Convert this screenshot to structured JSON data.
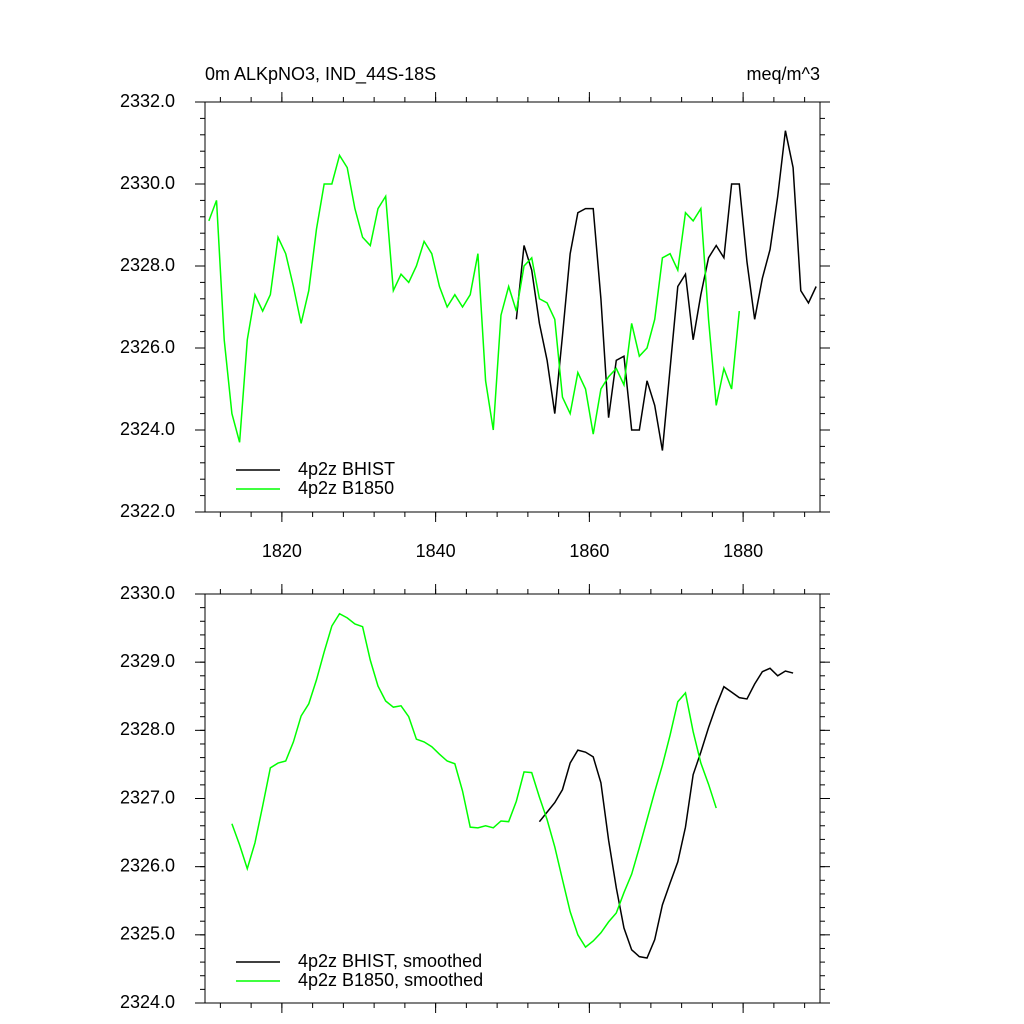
{
  "chart_data": [
    {
      "type": "line",
      "title": "0m ALKpNO3, IND_44S-18S",
      "units": "meq/m^3",
      "xlim": [
        1810,
        1890
      ],
      "xticks": [
        1820,
        1840,
        1860,
        1880
      ],
      "ylim": [
        2322,
        2332
      ],
      "yticks": [
        {
          "value": 2322,
          "label": "2322.0"
        },
        {
          "value": 2324,
          "label": "2324.0"
        },
        {
          "value": 2326,
          "label": "2326.0"
        },
        {
          "value": 2328,
          "label": "2328.0"
        },
        {
          "value": 2330,
          "label": "2330.0"
        },
        {
          "value": 2332,
          "label": "2332.0"
        }
      ],
      "series": [
        {
          "name": "4p2z BHIST",
          "color": "#000000",
          "x": [
            1850.5,
            1851.5,
            1852.5,
            1853.5,
            1854.5,
            1855.5,
            1856.5,
            1857.5,
            1858.5,
            1859.5,
            1860.5,
            1861.5,
            1862.5,
            1863.5,
            1864.5,
            1865.5,
            1866.5,
            1867.5,
            1868.5,
            1869.5,
            1870.5,
            1871.5,
            1872.5,
            1873.5,
            1874.5,
            1875.5,
            1876.5,
            1877.5,
            1878.5,
            1879.5,
            1880.5,
            1881.5,
            1882.5,
            1883.5,
            1884.5,
            1885.5,
            1886.5,
            1887.5,
            1888.5,
            1889.5
          ],
          "values": [
            2326.7,
            2328.5,
            2327.9,
            2326.6,
            2325.7,
            2324.4,
            2326.3,
            2328.3,
            2329.3,
            2329.4,
            2329.4,
            2327.2,
            2324.3,
            2325.7,
            2325.8,
            2324.0,
            2324.0,
            2325.2,
            2324.6,
            2323.5,
            2325.5,
            2327.5,
            2327.8,
            2326.2,
            2327.3,
            2328.2,
            2328.5,
            2328.2,
            2330.0,
            2330.0,
            2328.1,
            2326.7,
            2327.7,
            2328.4,
            2329.7,
            2331.3,
            2330.4,
            2327.4,
            2327.1,
            2327.5
          ]
        },
        {
          "name": "4p2z B1850",
          "color": "#00ff00",
          "x": [
            1810.5,
            1811.5,
            1812.5,
            1813.5,
            1814.5,
            1815.5,
            1816.5,
            1817.5,
            1818.5,
            1819.5,
            1820.5,
            1821.5,
            1822.5,
            1823.5,
            1824.5,
            1825.5,
            1826.5,
            1827.5,
            1828.5,
            1829.5,
            1830.5,
            1831.5,
            1832.5,
            1833.5,
            1834.5,
            1835.5,
            1836.5,
            1837.5,
            1838.5,
            1839.5,
            1840.5,
            1841.5,
            1842.5,
            1843.5,
            1844.5,
            1845.5,
            1846.5,
            1847.5,
            1848.5,
            1849.5,
            1850.5,
            1851.5,
            1852.5,
            1853.5,
            1854.5,
            1855.5,
            1856.5,
            1857.5,
            1858.5,
            1859.5,
            1860.5,
            1861.5,
            1862.5,
            1863.5,
            1864.5,
            1865.5,
            1866.5,
            1867.5,
            1868.5,
            1869.5,
            1870.5,
            1871.5,
            1872.5,
            1873.5,
            1874.5,
            1875.5,
            1876.5,
            1877.5,
            1878.5,
            1879.5
          ],
          "values": [
            2329.1,
            2329.6,
            2326.2,
            2324.4,
            2323.7,
            2326.2,
            2327.3,
            2326.9,
            2327.3,
            2328.7,
            2328.3,
            2327.5,
            2326.6,
            2327.4,
            2328.9,
            2330.0,
            2330.0,
            2330.7,
            2330.4,
            2329.4,
            2328.7,
            2328.5,
            2329.4,
            2329.7,
            2327.4,
            2327.8,
            2327.6,
            2328.0,
            2328.6,
            2328.3,
            2327.5,
            2327.0,
            2327.3,
            2327.0,
            2327.3,
            2328.3,
            2325.2,
            2324.0,
            2326.8,
            2327.5,
            2326.9,
            2328.0,
            2328.2,
            2327.2,
            2327.1,
            2326.7,
            2324.8,
            2324.4,
            2325.4,
            2325.0,
            2323.9,
            2325.0,
            2325.3,
            2325.5,
            2325.1,
            2326.6,
            2325.8,
            2326.0,
            2326.7,
            2328.2,
            2328.3,
            2327.9,
            2329.3,
            2329.1,
            2329.4,
            2326.7,
            2324.6,
            2325.5,
            2325.0,
            2326.9
          ]
        }
      ]
    },
    {
      "type": "line",
      "xlim": [
        1810,
        1890
      ],
      "xticks": [
        1820,
        1840,
        1860,
        1880
      ],
      "ylim": [
        2324,
        2330
      ],
      "yticks": [
        {
          "value": 2324,
          "label": "2324.0"
        },
        {
          "value": 2325,
          "label": "2325.0"
        },
        {
          "value": 2326,
          "label": "2326.0"
        },
        {
          "value": 2327,
          "label": "2327.0"
        },
        {
          "value": 2328,
          "label": "2328.0"
        },
        {
          "value": 2329,
          "label": "2329.0"
        },
        {
          "value": 2330,
          "label": "2330.0"
        }
      ],
      "series": [
        {
          "name": "4p2z BHIST, smoothed",
          "color": "#000000",
          "x": [
            1853.5,
            1854.5,
            1855.5,
            1856.5,
            1857.5,
            1858.5,
            1859.5,
            1860.5,
            1861.5,
            1862.5,
            1863.5,
            1864.5,
            1865.5,
            1866.5,
            1867.5,
            1868.5,
            1869.5,
            1870.5,
            1871.5,
            1872.5,
            1873.5,
            1874.5,
            1875.5,
            1876.5,
            1877.5,
            1878.5,
            1879.5,
            1880.5,
            1881.5,
            1882.5,
            1883.5,
            1884.5,
            1885.5,
            1886.5
          ],
          "values": [
            2326.66,
            2326.8,
            2326.94,
            2327.13,
            2327.52,
            2327.71,
            2327.68,
            2327.61,
            2327.23,
            2326.39,
            2325.69,
            2325.1,
            2324.78,
            2324.68,
            2324.66,
            2324.93,
            2325.44,
            2325.76,
            2326.07,
            2326.58,
            2327.35,
            2327.68,
            2328.04,
            2328.36,
            2328.64,
            2328.56,
            2328.48,
            2328.46,
            2328.68,
            2328.86,
            2328.91,
            2328.8,
            2328.87,
            2328.84
          ]
        },
        {
          "name": "4p2z B1850, smoothed",
          "color": "#00ff00",
          "x": [
            1813.5,
            1814.5,
            1815.5,
            1816.5,
            1817.5,
            1818.5,
            1819.5,
            1820.5,
            1821.5,
            1822.5,
            1823.5,
            1824.5,
            1825.5,
            1826.5,
            1827.5,
            1828.5,
            1829.5,
            1830.5,
            1831.5,
            1832.5,
            1833.5,
            1834.5,
            1835.5,
            1836.5,
            1837.5,
            1838.5,
            1839.5,
            1840.5,
            1841.5,
            1842.5,
            1843.5,
            1844.5,
            1845.5,
            1846.5,
            1847.5,
            1848.5,
            1849.5,
            1850.5,
            1851.5,
            1852.5,
            1853.5,
            1854.5,
            1855.5,
            1856.5,
            1857.5,
            1858.5,
            1859.5,
            1860.5,
            1861.5,
            1862.5,
            1863.5,
            1864.5,
            1865.5,
            1866.5,
            1867.5,
            1868.5,
            1869.5,
            1870.5,
            1871.5,
            1872.5,
            1873.5,
            1874.5,
            1875.5,
            1876.5
          ],
          "values": [
            2326.63,
            2326.32,
            2325.97,
            2326.35,
            2326.89,
            2327.45,
            2327.52,
            2327.55,
            2327.83,
            2328.21,
            2328.39,
            2328.74,
            2329.15,
            2329.53,
            2329.71,
            2329.65,
            2329.56,
            2329.52,
            2329.03,
            2328.65,
            2328.43,
            2328.34,
            2328.36,
            2328.2,
            2327.87,
            2327.83,
            2327.76,
            2327.65,
            2327.55,
            2327.51,
            2327.11,
            2326.58,
            2326.57,
            2326.6,
            2326.57,
            2326.67,
            2326.66,
            2326.96,
            2327.39,
            2327.38,
            2327.02,
            2326.69,
            2326.29,
            2325.81,
            2325.34,
            2325.0,
            2324.82,
            2324.91,
            2325.03,
            2325.19,
            2325.32,
            2325.62,
            2325.89,
            2326.28,
            2326.69,
            2327.1,
            2327.49,
            2327.93,
            2328.42,
            2328.55,
            2327.98,
            2327.52,
            2327.21,
            2326.86
          ]
        }
      ]
    }
  ]
}
